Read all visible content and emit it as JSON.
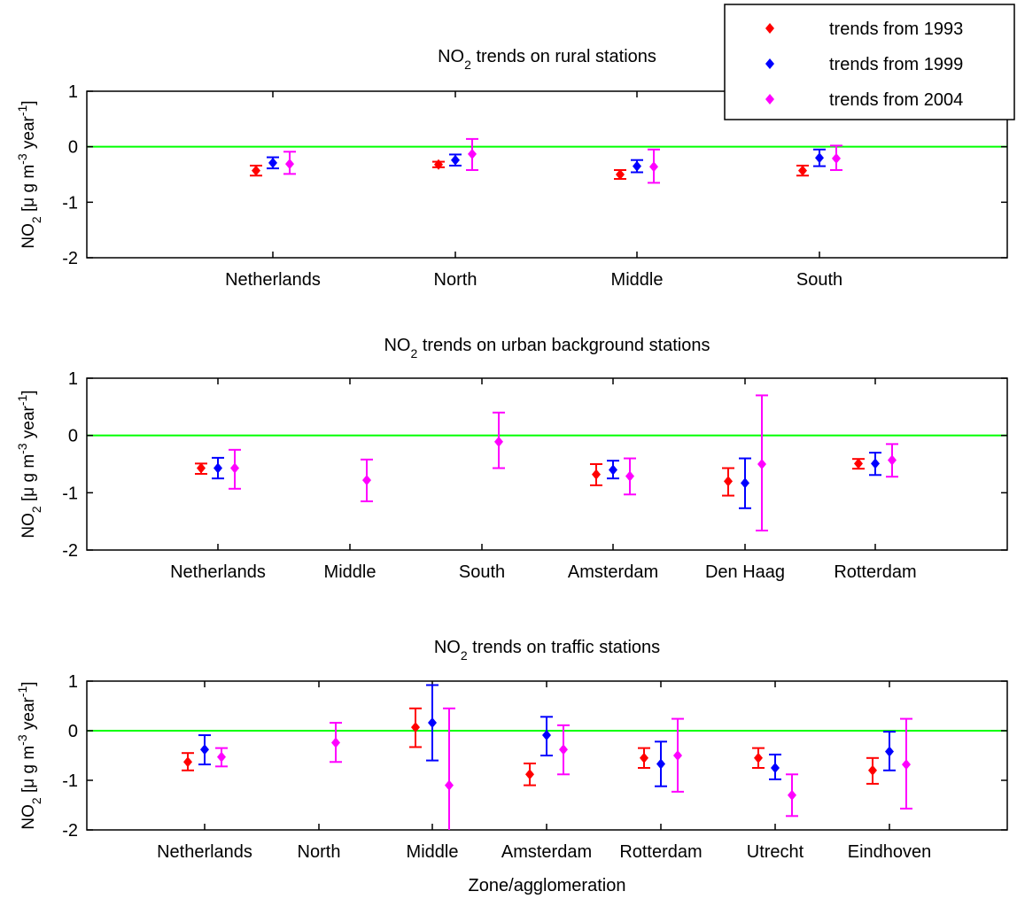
{
  "colors": {
    "s1993": "#ff0000",
    "s1999": "#0000ff",
    "s2004": "#ff00ff",
    "zero_line": "#00ff00",
    "axes": "#000000"
  },
  "legend": {
    "placement": "top-right",
    "entries": [
      {
        "label": "trends from 1993",
        "color": "#ff0000"
      },
      {
        "label": "trends from 1999",
        "color": "#0000ff"
      },
      {
        "label": "trends from 2004",
        "color": "#ff00ff"
      }
    ]
  },
  "chart_data": [
    {
      "type": "scatter",
      "title_parts": [
        "NO",
        "2",
        " trends on rural stations"
      ],
      "ylabel_parts": [
        "NO",
        "2",
        " [μ g m",
        "-3",
        " year",
        "-1",
        "]"
      ],
      "xlabel": "",
      "ylim": [
        -2,
        1
      ],
      "yticks": [
        1,
        0,
        -1,
        -2
      ],
      "categories": [
        "Netherlands",
        "North",
        "Middle",
        "South"
      ],
      "series": [
        {
          "name": "trends from 1993",
          "color": "#ff0000",
          "values": [
            -0.43,
            -0.32,
            -0.5,
            -0.43
          ],
          "err_low": [
            -0.52,
            -0.37,
            -0.58,
            -0.52
          ],
          "err_high": [
            -0.34,
            -0.27,
            -0.42,
            -0.34
          ]
        },
        {
          "name": "trends from 1999",
          "color": "#0000ff",
          "values": [
            -0.29,
            -0.24,
            -0.35,
            -0.2
          ],
          "err_low": [
            -0.39,
            -0.34,
            -0.46,
            -0.35
          ],
          "err_high": [
            -0.19,
            -0.14,
            -0.24,
            -0.05
          ]
        },
        {
          "name": "trends from 2004",
          "color": "#ff00ff",
          "values": [
            -0.31,
            -0.13,
            -0.36,
            -0.21
          ],
          "err_low": [
            -0.49,
            -0.42,
            -0.65,
            -0.42
          ],
          "err_high": [
            -0.09,
            0.14,
            -0.05,
            0.02
          ]
        }
      ]
    },
    {
      "type": "scatter",
      "title_parts": [
        "NO",
        "2",
        " trends on urban background stations"
      ],
      "ylabel_parts": [
        "NO",
        "2",
        " [μ g m",
        "-3",
        " year",
        "-1",
        "]"
      ],
      "xlabel": "",
      "ylim": [
        -2,
        1
      ],
      "yticks": [
        1,
        0,
        -1,
        -2
      ],
      "categories": [
        "Netherlands",
        "Middle",
        "South",
        "Amsterdam",
        "Den Haag",
        "Rotterdam"
      ],
      "series": [
        {
          "name": "trends from 1993",
          "color": "#ff0000",
          "values": [
            -0.57,
            null,
            null,
            -0.68,
            -0.8,
            -0.49
          ],
          "err_low": [
            -0.67,
            null,
            null,
            -0.87,
            -1.05,
            -0.58
          ],
          "err_high": [
            -0.49,
            null,
            null,
            -0.5,
            -0.57,
            -0.41
          ]
        },
        {
          "name": "trends from 1999",
          "color": "#0000ff",
          "values": [
            -0.57,
            null,
            null,
            -0.6,
            -0.83,
            -0.49
          ],
          "err_low": [
            -0.75,
            null,
            null,
            -0.75,
            -1.27,
            -0.69
          ],
          "err_high": [
            -0.39,
            null,
            null,
            -0.44,
            -0.4,
            -0.3
          ]
        },
        {
          "name": "trends from 2004",
          "color": "#ff00ff",
          "values": [
            -0.57,
            -0.78,
            -0.11,
            -0.71,
            -0.5,
            -0.43
          ],
          "err_low": [
            -0.93,
            -1.15,
            -0.57,
            -1.03,
            -1.66,
            -0.72
          ],
          "err_high": [
            -0.25,
            -0.42,
            0.4,
            -0.4,
            0.7,
            -0.15
          ]
        }
      ]
    },
    {
      "type": "scatter",
      "title_parts": [
        "NO",
        "2",
        " trends on traffic stations"
      ],
      "ylabel_parts": [
        "NO",
        "2",
        " [μ g m",
        "-3",
        " year",
        "-1",
        "]"
      ],
      "xlabel": "Zone/agglomeration",
      "ylim": [
        -2,
        1
      ],
      "yticks": [
        1,
        0,
        -1,
        -2
      ],
      "categories": [
        "Netherlands",
        "North",
        "Middle",
        "Amsterdam",
        "Rotterdam",
        "Utrecht",
        "Eindhoven"
      ],
      "series": [
        {
          "name": "trends from 1993",
          "color": "#ff0000",
          "values": [
            -0.63,
            null,
            0.07,
            -0.88,
            -0.55,
            -0.55,
            -0.8
          ],
          "err_low": [
            -0.8,
            null,
            -0.33,
            -1.1,
            -0.75,
            -0.75,
            -1.07
          ],
          "err_high": [
            -0.45,
            null,
            0.45,
            -0.66,
            -0.35,
            -0.35,
            -0.55
          ]
        },
        {
          "name": "trends from 1999",
          "color": "#0000ff",
          "values": [
            -0.38,
            null,
            0.16,
            -0.09,
            -0.67,
            -0.75,
            -0.42
          ],
          "err_low": [
            -0.68,
            null,
            -0.6,
            -0.5,
            -1.12,
            -0.98,
            -0.8
          ],
          "err_high": [
            -0.09,
            null,
            0.92,
            0.28,
            -0.22,
            -0.48,
            -0.02
          ]
        },
        {
          "name": "trends from 2004",
          "color": "#ff00ff",
          "values": [
            -0.53,
            -0.24,
            -1.1,
            -0.38,
            -0.5,
            -1.3,
            -0.68
          ],
          "err_low": [
            -0.72,
            -0.63,
            -2.0,
            -0.88,
            -1.23,
            -1.72,
            -1.57
          ],
          "err_high": [
            -0.35,
            0.16,
            0.45,
            0.11,
            0.24,
            -0.88,
            0.24
          ]
        }
      ]
    }
  ]
}
